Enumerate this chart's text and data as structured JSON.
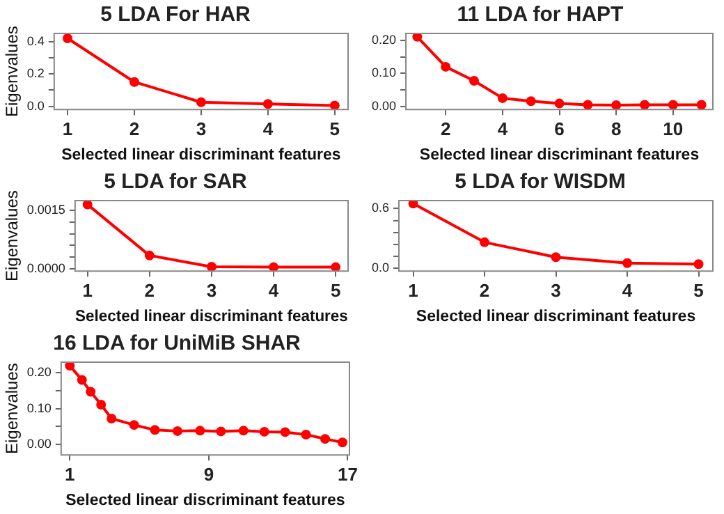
{
  "chart_data": [
    {
      "type": "line",
      "title": "5 LDA For HAR",
      "xlabel": "Selected linear discriminant features",
      "ylabel": "Eigenvalues",
      "x": [
        1,
        2,
        3,
        4,
        5
      ],
      "series": [
        {
          "color": "#ff0000",
          "values": [
            0.42,
            0.15,
            0.025,
            0.014,
            0.005
          ]
        }
      ],
      "xlim": [
        0.8,
        5.2
      ],
      "xticks": [
        1,
        2,
        3,
        4,
        5
      ],
      "ylim": [
        -0.02,
        0.45
      ],
      "yticks": [
        {
          "value": 0,
          "label": "0.0"
        },
        {
          "value": 0.1,
          "label": null
        },
        0.2,
        {
          "value": 0.3,
          "label": null
        },
        0.4
      ],
      "marker": "circle",
      "line_style": "solid",
      "legend": false
    },
    {
      "type": "line",
      "title": "11 LDA for HAPT",
      "xlabel": "Selected linear discriminant features",
      "x": [
        1,
        2,
        3,
        4,
        5,
        6,
        7,
        8,
        9,
        10,
        11
      ],
      "series": [
        {
          "color": "#ff0000",
          "values": [
            0.21,
            0.12,
            0.078,
            0.026,
            0.017,
            0.01,
            0.006,
            0.005,
            0.006,
            0.006,
            0.006
          ]
        }
      ],
      "xlim": [
        0.6,
        11.4
      ],
      "xticks": [
        2,
        4,
        6,
        8,
        10
      ],
      "ylim": [
        -0.008,
        0.22
      ],
      "yticks": [
        {
          "value": 0,
          "label": "0.00"
        },
        {
          "value": 0.05,
          "label": null
        },
        {
          "value": 0.1,
          "label": "0.10"
        },
        {
          "value": 0.15,
          "label": null
        },
        {
          "value": 0.2,
          "label": "0.20"
        }
      ],
      "marker": "circle",
      "line_style": "solid",
      "legend": false
    },
    {
      "type": "line",
      "title": "5 LDA for SAR",
      "xlabel": "Selected linear discriminant features",
      "ylabel": "Eigenvalues",
      "x": [
        1,
        2,
        3,
        4,
        5
      ],
      "series": [
        {
          "color": "#ff0000",
          "values": [
            0.00165,
            0.00034,
            5e-05,
            4e-05,
            4e-05
          ]
        }
      ],
      "xlim": [
        0.8,
        5.2
      ],
      "xticks": [
        1,
        2,
        3,
        4,
        5
      ],
      "ylim": [
        -6e-05,
        0.00175
      ],
      "yticks": [
        {
          "value": 0,
          "label": "0.0000"
        },
        {
          "value": 0.0003,
          "label": null
        },
        {
          "value": 0.0006,
          "label": null
        },
        {
          "value": 0.0009,
          "label": null
        },
        {
          "value": 0.0012,
          "label": null
        },
        {
          "value": 0.0015,
          "label": "0.0015"
        }
      ],
      "marker": "circle",
      "line_style": "solid",
      "legend": false
    },
    {
      "type": "line",
      "title": "5 LDA for WISDM",
      "xlabel": "Selected linear discriminant features",
      "x": [
        1,
        2,
        3,
        4,
        5
      ],
      "series": [
        {
          "color": "#ff0000",
          "values": [
            0.65,
            0.26,
            0.11,
            0.05,
            0.04
          ]
        }
      ],
      "xlim": [
        0.8,
        5.2
      ],
      "xticks": [
        1,
        2,
        3,
        4,
        5
      ],
      "ylim": [
        -0.03,
        0.68
      ],
      "yticks": [
        {
          "value": 0,
          "label": "0.0"
        },
        {
          "value": 0.12,
          "label": null
        },
        {
          "value": 0.24,
          "label": null
        },
        {
          "value": 0.36,
          "label": null
        },
        {
          "value": 0.48,
          "label": null
        },
        {
          "value": 0.6,
          "label": "0.6"
        }
      ],
      "marker": "circle",
      "line_style": "solid",
      "legend": false
    },
    {
      "type": "line",
      "title": "16 LDA for UniMiB SHAR",
      "xlabel": "Selected linear discriminant features",
      "ylabel": "Eigenvalues",
      "x": [
        1,
        1.7,
        2.2,
        2.8,
        3.4,
        4.7,
        5.9,
        7.2,
        8.5,
        9.7,
        11,
        12.2,
        13.4,
        14.6,
        15.7,
        16.7
      ],
      "series": [
        {
          "color": "#ff0000",
          "values": [
            0.22,
            0.18,
            0.147,
            0.111,
            0.072,
            0.054,
            0.04,
            0.037,
            0.038,
            0.036,
            0.038,
            0.035,
            0.034,
            0.027,
            0.015,
            0.005
          ]
        }
      ],
      "xlim": [
        0.5,
        17.1
      ],
      "xticks": [
        1,
        9,
        17
      ],
      "ylim": [
        -0.03,
        0.23
      ],
      "yticks": [
        {
          "value": 0,
          "label": "0.00"
        },
        {
          "value": 0.05,
          "label": null
        },
        {
          "value": 0.1,
          "label": "0.10"
        },
        {
          "value": 0.15,
          "label": null
        },
        {
          "value": 0.2,
          "label": "0.20"
        }
      ],
      "marker": "circle",
      "line_style": "solid",
      "legend": false
    }
  ]
}
